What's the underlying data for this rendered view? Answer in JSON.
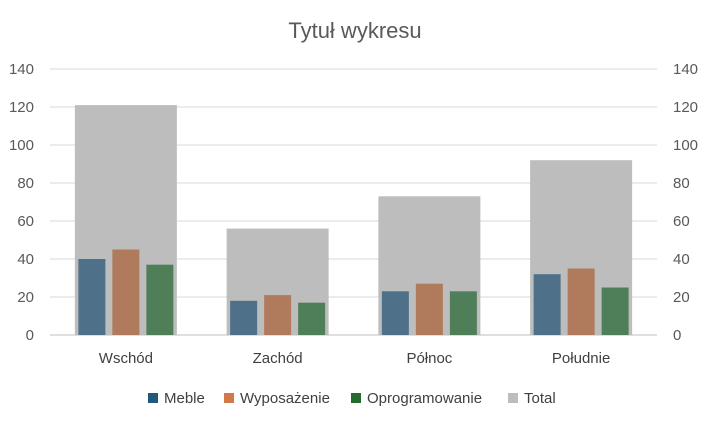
{
  "chart_data": {
    "type": "bar",
    "title": "Tytuł wykresu",
    "categories": [
      "Wschód",
      "Zachód",
      "Północ",
      "Południe"
    ],
    "series": [
      {
        "name": "Meble",
        "values": [
          40,
          18,
          23,
          32
        ],
        "color": "#4e7189"
      },
      {
        "name": "Wyposażenie",
        "values": [
          45,
          21,
          27,
          35
        ],
        "color": "#b07a5d"
      },
      {
        "name": "Oprogramowanie",
        "values": [
          37,
          17,
          23,
          25
        ],
        "color": "#4f7f58"
      }
    ],
    "total": {
      "name": "Total",
      "values": [
        121,
        56,
        73,
        92
      ],
      "color": "#bdbdbd"
    },
    "legend_colors": {
      "Meble": "#1f5a7a",
      "Wyposażenie": "#d07a4a",
      "Oprogramowanie": "#236b2e",
      "Total": "#bdbdbd"
    },
    "ylim": [
      0,
      140
    ],
    "yticks": [
      "0",
      "20",
      "40",
      "60",
      "80",
      "100",
      "120",
      "140"
    ],
    "secondary_yticks": [
      "0",
      "20",
      "40",
      "60",
      "80",
      "100",
      "120",
      "140"
    ],
    "grid": true,
    "legend_position": "bottom"
  }
}
